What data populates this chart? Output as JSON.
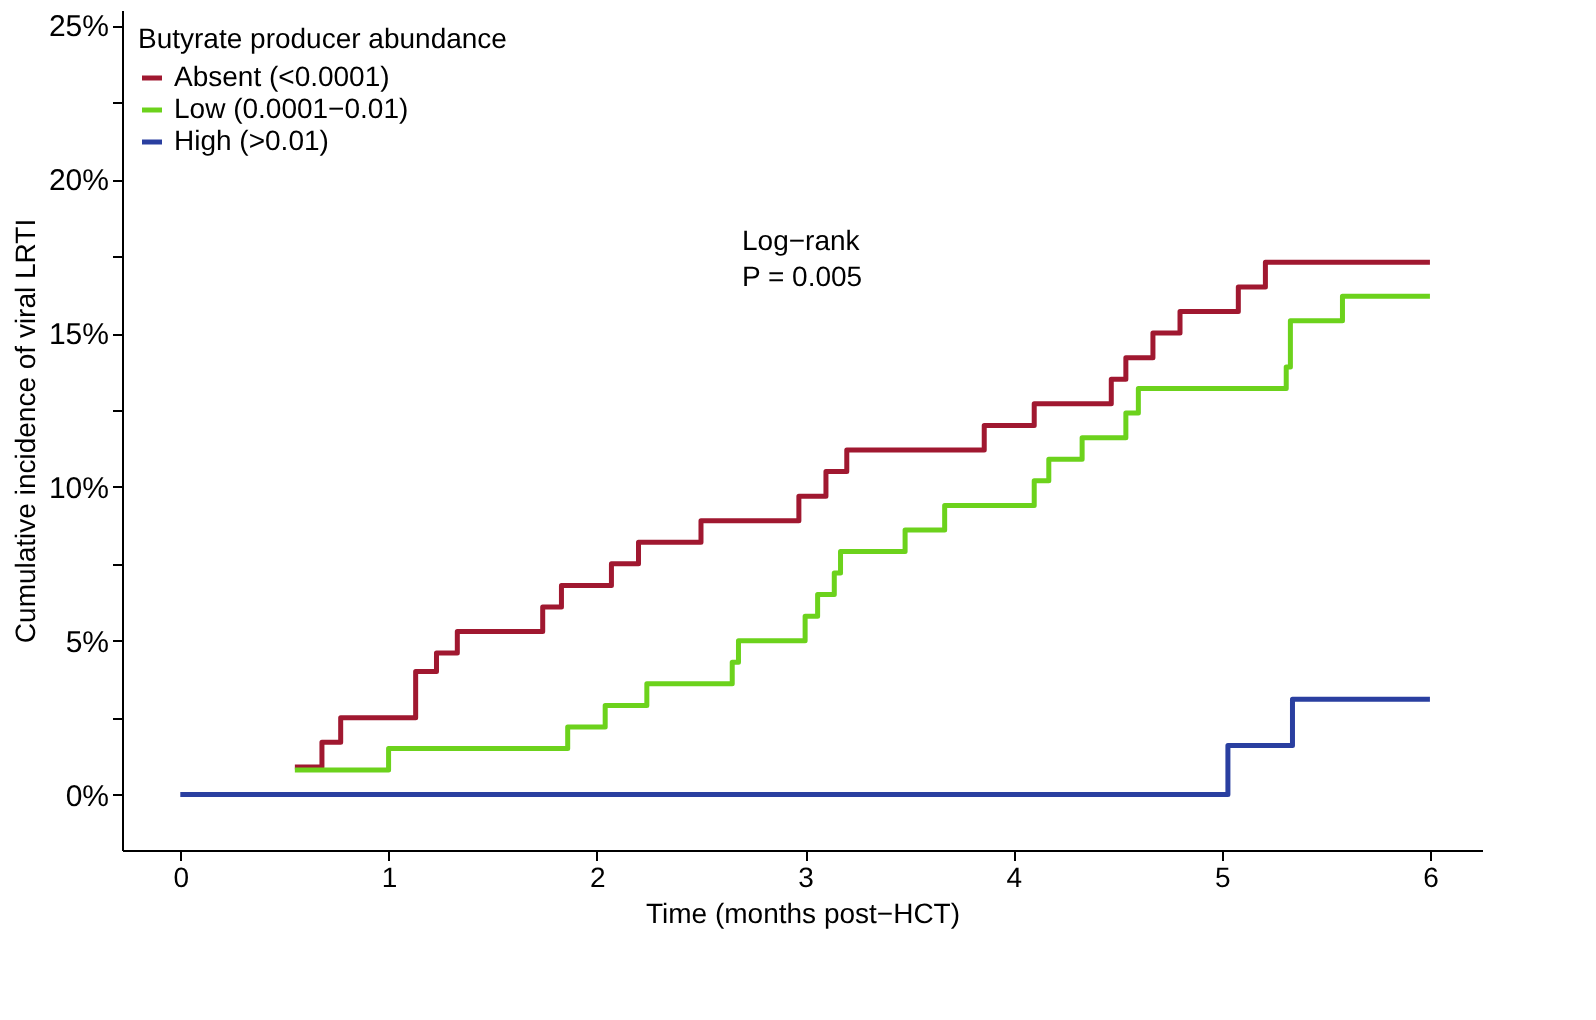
{
  "chart_data": {
    "type": "step",
    "xlabel": "Time (months post−HCT)",
    "ylabel": "Cumulative incidence of viral LRTI",
    "legend_title": "Butyrate producer abundance",
    "legend": "top left",
    "grid": false,
    "marker": "none",
    "line_style": "solid",
    "xlim": [
      -0.28,
      6.25
    ],
    "xticks": [
      0,
      1,
      2,
      3,
      4,
      5,
      6
    ],
    "ylim": [
      -1.8,
      25.5
    ],
    "yticks": [
      {
        "value": 0,
        "label": "0%"
      },
      {
        "value": 2.5,
        "label": null
      },
      {
        "value": 5,
        "label": "5%"
      },
      {
        "value": 7.5,
        "label": null
      },
      {
        "value": 10,
        "label": "10%"
      },
      {
        "value": 12.5,
        "label": null
      },
      {
        "value": 15,
        "label": "15%"
      },
      {
        "value": 17.5,
        "label": null
      },
      {
        "value": 20,
        "label": "20%"
      },
      {
        "value": 22.5,
        "label": null
      },
      {
        "value": 25,
        "label": "25%"
      }
    ],
    "annotations": [
      "Log−rank",
      "P = 0.005"
    ],
    "series": [
      {
        "name": "Absent (<0.0001)",
        "color": "#a01830",
        "x": [
          0.55,
          0.68,
          0.77,
          1.13,
          1.23,
          1.33,
          1.74,
          1.83,
          2.07,
          2.2,
          2.5,
          2.97,
          3.1,
          3.2,
          3.86,
          4.1,
          4.47,
          4.54,
          4.67,
          4.8,
          5.08,
          5.21,
          6.0
        ],
        "values": [
          0.9,
          1.7,
          2.5,
          4.0,
          4.6,
          5.3,
          6.1,
          6.8,
          7.5,
          8.2,
          8.9,
          9.7,
          10.5,
          11.2,
          12.0,
          12.7,
          13.5,
          14.2,
          15.0,
          15.7,
          16.5,
          17.3,
          17.3
        ]
      },
      {
        "name": "Low (0.0001−0.01)",
        "color": "#6cd21c",
        "x": [
          0.55,
          1.0,
          1.86,
          2.04,
          2.24,
          2.65,
          2.68,
          3.0,
          3.06,
          3.14,
          3.17,
          3.48,
          3.67,
          4.1,
          4.17,
          4.33,
          4.54,
          4.6,
          5.31,
          5.33,
          5.58,
          6.0
        ],
        "values": [
          0.8,
          1.5,
          2.2,
          2.9,
          3.6,
          4.3,
          5.0,
          5.8,
          6.5,
          7.2,
          7.9,
          8.6,
          9.4,
          10.2,
          10.9,
          11.6,
          12.4,
          13.2,
          13.9,
          15.4,
          16.2,
          16.2
        ]
      },
      {
        "name": "High (>0.01)",
        "color": "#2a3fa0",
        "x": [
          0.0,
          5.03,
          5.34,
          6.0
        ],
        "values": [
          0.0,
          1.6,
          3.1,
          3.1
        ]
      }
    ]
  }
}
